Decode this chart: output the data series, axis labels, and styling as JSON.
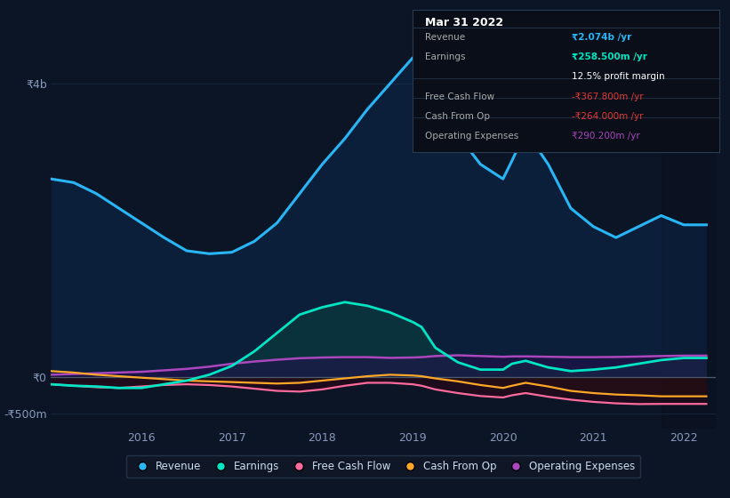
{
  "bg_color": "#0c1526",
  "plot_bg_color": "#0c1526",
  "grid_color": "#1a2a40",
  "zero_line_color": "#4a5a6a",
  "title_box_bg": "#090e18",
  "title_box_border": "#2a3a4a",
  "y_label_4b": "₹4b",
  "y_label_0": "₹0",
  "y_label_neg500m": "-₹500m",
  "ylim": [
    -700000000,
    4800000000
  ],
  "xlim": [
    2015.0,
    2022.35
  ],
  "x_ticks": [
    2016,
    2017,
    2018,
    2019,
    2020,
    2021,
    2022
  ],
  "legend": [
    {
      "label": "Revenue",
      "color": "#29b6f6"
    },
    {
      "label": "Earnings",
      "color": "#00e5c3"
    },
    {
      "label": "Free Cash Flow",
      "color": "#ff6b9d"
    },
    {
      "label": "Cash From Op",
      "color": "#ffa726"
    },
    {
      "label": "Operating Expenses",
      "color": "#ab47bc"
    }
  ],
  "info_box": {
    "title": "Mar 31 2022",
    "rows": [
      {
        "label": "Revenue",
        "value": "₹2.074b /yr",
        "value_color": "#29b6f6",
        "bold_value": true,
        "has_divider_above": true
      },
      {
        "label": "Earnings",
        "value": "₹258.500m /yr",
        "value_color": "#00e5c3",
        "bold_value": true,
        "has_divider_above": false
      },
      {
        "label": "",
        "value": "12.5% profit margin",
        "value_color": "#ffffff",
        "bold_value": false,
        "has_divider_above": false
      },
      {
        "label": "Free Cash Flow",
        "value": "-₹367.800m /yr",
        "value_color": "#e53935",
        "bold_value": false,
        "has_divider_above": true
      },
      {
        "label": "Cash From Op",
        "value": "-₹264.000m /yr",
        "value_color": "#e53935",
        "bold_value": false,
        "has_divider_above": true
      },
      {
        "label": "Operating Expenses",
        "value": "₹290.200m /yr",
        "value_color": "#ab47bc",
        "bold_value": false,
        "has_divider_above": true
      }
    ]
  },
  "series": {
    "x": [
      2015.0,
      2015.25,
      2015.5,
      2015.75,
      2016.0,
      2016.25,
      2016.5,
      2016.75,
      2017.0,
      2017.25,
      2017.5,
      2017.75,
      2018.0,
      2018.25,
      2018.5,
      2018.75,
      2019.0,
      2019.1,
      2019.25,
      2019.5,
      2019.75,
      2020.0,
      2020.1,
      2020.25,
      2020.5,
      2020.75,
      2021.0,
      2021.25,
      2021.5,
      2021.75,
      2022.0,
      2022.25
    ],
    "revenue": [
      2700000000,
      2650000000,
      2500000000,
      2300000000,
      2100000000,
      1900000000,
      1720000000,
      1680000000,
      1700000000,
      1850000000,
      2100000000,
      2500000000,
      2900000000,
      3250000000,
      3650000000,
      4000000000,
      4350000000,
      4400000000,
      3900000000,
      3300000000,
      2900000000,
      2700000000,
      2950000000,
      3350000000,
      2900000000,
      2300000000,
      2050000000,
      1900000000,
      2050000000,
      2200000000,
      2074000000,
      2074000000
    ],
    "earnings": [
      -100000000,
      -120000000,
      -130000000,
      -150000000,
      -150000000,
      -100000000,
      -50000000,
      30000000,
      150000000,
      350000000,
      600000000,
      850000000,
      950000000,
      1020000000,
      970000000,
      880000000,
      750000000,
      680000000,
      400000000,
      200000000,
      100000000,
      100000000,
      180000000,
      220000000,
      130000000,
      80000000,
      100000000,
      130000000,
      180000000,
      230000000,
      258500000,
      258500000
    ],
    "free_cash_flow": [
      -100000000,
      -120000000,
      -140000000,
      -150000000,
      -130000000,
      -110000000,
      -100000000,
      -110000000,
      -130000000,
      -160000000,
      -190000000,
      -200000000,
      -170000000,
      -120000000,
      -80000000,
      -80000000,
      -100000000,
      -120000000,
      -170000000,
      -220000000,
      -260000000,
      -280000000,
      -250000000,
      -220000000,
      -270000000,
      -310000000,
      -340000000,
      -360000000,
      -370000000,
      -367800000,
      -367800000,
      -367800000
    ],
    "cash_from_op": [
      80000000,
      60000000,
      30000000,
      10000000,
      -10000000,
      -30000000,
      -50000000,
      -60000000,
      -70000000,
      -80000000,
      -90000000,
      -80000000,
      -50000000,
      -20000000,
      10000000,
      30000000,
      20000000,
      10000000,
      -20000000,
      -60000000,
      -110000000,
      -150000000,
      -120000000,
      -80000000,
      -130000000,
      -190000000,
      -220000000,
      -240000000,
      -250000000,
      -264000000,
      -264000000,
      -264000000
    ],
    "operating_expenses": [
      30000000,
      40000000,
      50000000,
      60000000,
      70000000,
      90000000,
      110000000,
      140000000,
      180000000,
      210000000,
      235000000,
      255000000,
      265000000,
      270000000,
      270000000,
      260000000,
      265000000,
      270000000,
      285000000,
      295000000,
      285000000,
      275000000,
      280000000,
      280000000,
      275000000,
      270000000,
      270000000,
      272000000,
      278000000,
      285000000,
      290200000,
      290200000
    ]
  }
}
